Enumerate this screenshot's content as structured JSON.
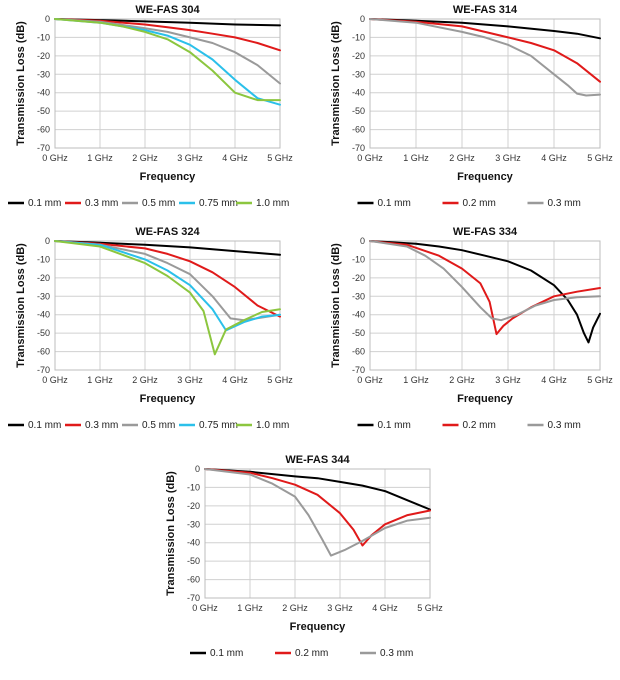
{
  "y_axis_label": "Transmission Loss (dB)",
  "x_axis_label": "Frequency",
  "colors": {
    "0.1 mm": "#000000",
    "0.2 mm": "#e01a1a",
    "0.3 mm": "#e01a1a",
    "0.5 mm": "#9a9a9a",
    "0.75 mm": "#2bc0ea",
    "1.0 mm": "#8cc63f"
  },
  "chart_data": [
    {
      "type": "line",
      "title": "WE-FAS 304",
      "xlabel": "Frequency",
      "ylabel": "Transmission Loss (dB)",
      "xlim": [
        0,
        5
      ],
      "ylim": [
        -70,
        0
      ],
      "x_ticks": [
        "0 GHz",
        "1 GHz",
        "2 GHz",
        "3 GHz",
        "4 GHz",
        "5 GHz"
      ],
      "y_ticks": [
        "0",
        "-10",
        "-20",
        "-30",
        "-40",
        "-50",
        "-60",
        "-70"
      ],
      "grid": true,
      "legend": "bottom",
      "series": [
        {
          "name": "0.1 mm",
          "color": "#000000",
          "points": [
            [
              0,
              0
            ],
            [
              1,
              -0.6
            ],
            [
              2,
              -1.3
            ],
            [
              3,
              -2
            ],
            [
              4,
              -3
            ],
            [
              5,
              -3.5
            ]
          ]
        },
        {
          "name": "0.3 mm",
          "color": "#e01a1a",
          "points": [
            [
              0,
              0
            ],
            [
              1,
              -1
            ],
            [
              2,
              -3
            ],
            [
              2.5,
              -4.5
            ],
            [
              3,
              -6
            ],
            [
              3.5,
              -8
            ],
            [
              4,
              -10
            ],
            [
              4.5,
              -13
            ],
            [
              5,
              -17
            ]
          ]
        },
        {
          "name": "0.5 mm",
          "color": "#9a9a9a",
          "points": [
            [
              0,
              0
            ],
            [
              1,
              -1.5
            ],
            [
              2,
              -5
            ],
            [
              2.5,
              -7
            ],
            [
              3,
              -10
            ],
            [
              3.5,
              -13
            ],
            [
              4,
              -18
            ],
            [
              4.5,
              -25
            ],
            [
              5,
              -35
            ]
          ]
        },
        {
          "name": "0.75 mm",
          "color": "#2bc0ea",
          "points": [
            [
              0,
              0
            ],
            [
              1,
              -2
            ],
            [
              1.5,
              -4
            ],
            [
              2,
              -6
            ],
            [
              2.5,
              -9
            ],
            [
              3,
              -14
            ],
            [
              3.5,
              -22
            ],
            [
              4,
              -33
            ],
            [
              4.5,
              -43
            ],
            [
              5,
              -46.5
            ]
          ]
        },
        {
          "name": "1.0 mm",
          "color": "#8cc63f",
          "points": [
            [
              0,
              0
            ],
            [
              1,
              -2
            ],
            [
              1.5,
              -4
            ],
            [
              2,
              -7
            ],
            [
              2.5,
              -11
            ],
            [
              3,
              -18
            ],
            [
              3.5,
              -28
            ],
            [
              4,
              -40
            ],
            [
              4.5,
              -44
            ],
            [
              5,
              -44
            ]
          ]
        }
      ]
    },
    {
      "type": "line",
      "title": "WE-FAS 314",
      "xlabel": "Frequency",
      "ylabel": "Transmission Loss (dB)",
      "xlim": [
        0,
        5
      ],
      "ylim": [
        -70,
        0
      ],
      "x_ticks": [
        "0 GHz",
        "1 GHz",
        "2 GHz",
        "3 GHz",
        "4 GHz",
        "5 GHz"
      ],
      "y_ticks": [
        "0",
        "-10",
        "-20",
        "-30",
        "-40",
        "-50",
        "-60",
        "-70"
      ],
      "grid": true,
      "legend": "bottom",
      "series": [
        {
          "name": "0.1 mm",
          "color": "#000000",
          "points": [
            [
              0,
              0
            ],
            [
              1,
              -1
            ],
            [
              2,
              -2
            ],
            [
              3,
              -4
            ],
            [
              4,
              -6.5
            ],
            [
              4.5,
              -8
            ],
            [
              5,
              -10.5
            ]
          ]
        },
        {
          "name": "0.2 mm",
          "color": "#e01a1a",
          "points": [
            [
              0,
              0
            ],
            [
              1,
              -1.5
            ],
            [
              2,
              -4
            ],
            [
              3,
              -10
            ],
            [
              3.5,
              -13
            ],
            [
              4,
              -17
            ],
            [
              4.5,
              -24
            ],
            [
              5,
              -34
            ]
          ]
        },
        {
          "name": "0.3 mm",
          "color": "#9a9a9a",
          "points": [
            [
              0,
              0
            ],
            [
              1,
              -2
            ],
            [
              2,
              -7
            ],
            [
              2.5,
              -10
            ],
            [
              3,
              -14
            ],
            [
              3.5,
              -20
            ],
            [
              4,
              -30
            ],
            [
              4.3,
              -36
            ],
            [
              4.5,
              -40.5
            ],
            [
              4.7,
              -41.5
            ],
            [
              5,
              -41
            ]
          ]
        }
      ]
    },
    {
      "type": "line",
      "title": "WE-FAS 324",
      "xlabel": "Frequency",
      "ylabel": "Transmission Loss (dB)",
      "xlim": [
        0,
        5
      ],
      "ylim": [
        -70,
        0
      ],
      "x_ticks": [
        "0 GHz",
        "1 GHz",
        "2 GHz",
        "3 GHz",
        "4 GHz",
        "5 GHz"
      ],
      "y_ticks": [
        "0",
        "-10",
        "-20",
        "-30",
        "-40",
        "-50",
        "-60",
        "-70"
      ],
      "grid": true,
      "legend": "bottom",
      "series": [
        {
          "name": "0.1 mm",
          "color": "#000000",
          "points": [
            [
              0,
              0
            ],
            [
              1,
              -1
            ],
            [
              2,
              -2
            ],
            [
              3,
              -3.5
            ],
            [
              4,
              -5.5
            ],
            [
              5,
              -7.5
            ]
          ]
        },
        {
          "name": "0.3 mm",
          "color": "#e01a1a",
          "points": [
            [
              0,
              0
            ],
            [
              1,
              -1.5
            ],
            [
              2,
              -4
            ],
            [
              2.5,
              -7
            ],
            [
              3,
              -11
            ],
            [
              3.5,
              -17
            ],
            [
              4,
              -25
            ],
            [
              4.5,
              -35
            ],
            [
              5,
              -41
            ]
          ]
        },
        {
          "name": "0.5 mm",
          "color": "#9a9a9a",
          "points": [
            [
              0,
              0
            ],
            [
              1,
              -2
            ],
            [
              2,
              -7
            ],
            [
              2.5,
              -12
            ],
            [
              3,
              -18
            ],
            [
              3.5,
              -30
            ],
            [
              3.9,
              -42
            ],
            [
              4.2,
              -43
            ],
            [
              4.6,
              -41.5
            ],
            [
              5,
              -40
            ]
          ]
        },
        {
          "name": "0.75 mm",
          "color": "#2bc0ea",
          "points": [
            [
              0,
              0
            ],
            [
              1,
              -2
            ],
            [
              2,
              -10
            ],
            [
              2.5,
              -16
            ],
            [
              3,
              -24
            ],
            [
              3.5,
              -37
            ],
            [
              3.8,
              -48.5
            ],
            [
              4.2,
              -44
            ],
            [
              4.6,
              -41
            ],
            [
              5,
              -40
            ]
          ]
        },
        {
          "name": "1.0 mm",
          "color": "#8cc63f",
          "points": [
            [
              0,
              0
            ],
            [
              1,
              -3
            ],
            [
              2,
              -12
            ],
            [
              2.5,
              -19
            ],
            [
              3,
              -28
            ],
            [
              3.3,
              -38
            ],
            [
              3.55,
              -61.5
            ],
            [
              3.8,
              -48
            ],
            [
              4.2,
              -43
            ],
            [
              4.6,
              -38.5
            ],
            [
              5,
              -37
            ]
          ]
        }
      ]
    },
    {
      "type": "line",
      "title": "WE-FAS 334",
      "xlabel": "Frequency",
      "ylabel": "Transmission Loss (dB)",
      "xlim": [
        0,
        5
      ],
      "ylim": [
        -70,
        0
      ],
      "x_ticks": [
        "0 GHz",
        "1 GHz",
        "2 GHz",
        "3 GHz",
        "4 GHz",
        "5 GHz"
      ],
      "y_ticks": [
        "0",
        "-10",
        "-20",
        "-30",
        "-40",
        "-50",
        "-60",
        "-70"
      ],
      "grid": true,
      "legend": "bottom",
      "series": [
        {
          "name": "0.1 mm",
          "color": "#000000",
          "points": [
            [
              0,
              0
            ],
            [
              1,
              -1.5
            ],
            [
              1.5,
              -3
            ],
            [
              2,
              -5
            ],
            [
              2.5,
              -8
            ],
            [
              3,
              -11
            ],
            [
              3.5,
              -16
            ],
            [
              4,
              -24
            ],
            [
              4.3,
              -32
            ],
            [
              4.5,
              -40
            ],
            [
              4.65,
              -50
            ],
            [
              4.75,
              -55
            ],
            [
              4.85,
              -47
            ],
            [
              5,
              -39.5
            ]
          ]
        },
        {
          "name": "0.2 mm",
          "color": "#e01a1a",
          "points": [
            [
              0,
              0
            ],
            [
              0.8,
              -2
            ],
            [
              1.5,
              -8
            ],
            [
              2,
              -15
            ],
            [
              2.4,
              -23
            ],
            [
              2.6,
              -33
            ],
            [
              2.75,
              -50.5
            ],
            [
              2.9,
              -46
            ],
            [
              3.1,
              -42
            ],
            [
              3.5,
              -36
            ],
            [
              4,
              -30
            ],
            [
              4.5,
              -27.5
            ],
            [
              5,
              -25.5
            ]
          ]
        },
        {
          "name": "0.3 mm",
          "color": "#9a9a9a",
          "points": [
            [
              0,
              0
            ],
            [
              0.8,
              -3
            ],
            [
              1.2,
              -8
            ],
            [
              1.6,
              -15
            ],
            [
              2,
              -25
            ],
            [
              2.4,
              -36
            ],
            [
              2.65,
              -42
            ],
            [
              2.85,
              -43
            ],
            [
              3.2,
              -40
            ],
            [
              3.6,
              -35
            ],
            [
              4,
              -32
            ],
            [
              4.5,
              -30.5
            ],
            [
              5,
              -30
            ]
          ]
        }
      ]
    },
    {
      "type": "line",
      "title": "WE-FAS 344",
      "xlabel": "Frequency",
      "ylabel": "Transmission Loss (dB)",
      "xlim": [
        0,
        5
      ],
      "ylim": [
        -70,
        0
      ],
      "x_ticks": [
        "0 GHz",
        "1 GHz",
        "2 GHz",
        "3 GHz",
        "4 GHz",
        "5 GHz"
      ],
      "y_ticks": [
        "0",
        "-10",
        "-20",
        "-30",
        "-40",
        "-50",
        "-60",
        "-70"
      ],
      "grid": true,
      "legend": "bottom",
      "series": [
        {
          "name": "0.1 mm",
          "color": "#000000",
          "points": [
            [
              0,
              0
            ],
            [
              1,
              -1.5
            ],
            [
              2,
              -4
            ],
            [
              2.5,
              -5
            ],
            [
              3,
              -7
            ],
            [
              3.5,
              -9
            ],
            [
              4,
              -12
            ],
            [
              4.5,
              -17
            ],
            [
              5,
              -22
            ]
          ]
        },
        {
          "name": "0.2 mm",
          "color": "#e01a1a",
          "points": [
            [
              0,
              0
            ],
            [
              1,
              -2
            ],
            [
              1.5,
              -5
            ],
            [
              2,
              -8.5
            ],
            [
              2.5,
              -14
            ],
            [
              3,
              -24
            ],
            [
              3.3,
              -33
            ],
            [
              3.5,
              -41.5
            ],
            [
              3.7,
              -36
            ],
            [
              4,
              -30
            ],
            [
              4.5,
              -25
            ],
            [
              5,
              -22.5
            ]
          ]
        },
        {
          "name": "0.3 mm",
          "color": "#9a9a9a",
          "points": [
            [
              0,
              0
            ],
            [
              1,
              -3
            ],
            [
              1.5,
              -8
            ],
            [
              2,
              -15
            ],
            [
              2.3,
              -25
            ],
            [
              2.6,
              -38
            ],
            [
              2.8,
              -47
            ],
            [
              3.1,
              -44
            ],
            [
              3.5,
              -39
            ],
            [
              4,
              -32
            ],
            [
              4.5,
              -28
            ],
            [
              5,
              -26.5
            ]
          ]
        }
      ]
    }
  ]
}
